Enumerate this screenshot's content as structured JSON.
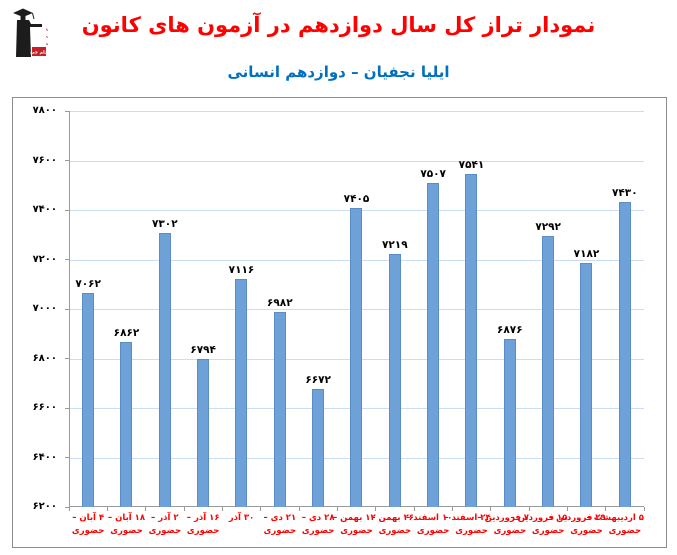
{
  "header": {
    "title": "نمودار تراز کل سال دوازدهم در آزمون های کانون",
    "subtitle": "ایلیا نجفیان – دوازدهم انسانی",
    "title_color": "#FF0000",
    "subtitle_color": "#0070C0",
    "logo_alt": "kanoon-farhangi-amoozesh-logo"
  },
  "chart_data": {
    "type": "bar",
    "title": "نمودار تراز کل سال دوازدهم در آزمون های کانون",
    "subtitle": "ایلیا نجفیان – دوازدهم انسانی",
    "categories": [
      "۴ آبان – حضوری",
      "۱۸ آبان – حضوری",
      "۲ آذر – حضوری",
      "۱۶ آذر – حضوری",
      "۳۰ آذر",
      "۲۱ دی – حضوری",
      "۲۸ دی – حضوری",
      "۱۲ بهمن – حضوری",
      "۲۶ بهمن – حضوری",
      "۱۰ اسفند – حضوری",
      "۲۴ اسفند – حضوری",
      "۷ فروردین – حضوری",
      "۱۵ فروردین – حضوری",
      "۲۹ فروردین – حضوری",
      "۵ اردیبهشت – حضوری"
    ],
    "values": [
      7062,
      6862,
      7302,
      6794,
      7116,
      6982,
      6672,
      7405,
      7219,
      7507,
      7541,
      6876,
      7292,
      7182,
      7430
    ],
    "value_labels": [
      "۷۰۶۲",
      "۶۸۶۲",
      "۷۳۰۲",
      "۶۷۹۴",
      "۷۱۱۶",
      "۶۹۸۲",
      "۶۶۷۲",
      "۷۴۰۵",
      "۷۲۱۹",
      "۷۵۰۷",
      "۷۵۴۱",
      "۶۸۷۶",
      "۷۲۹۲",
      "۷۱۸۲",
      "۷۴۳۰"
    ],
    "xlabel": "",
    "ylabel": "",
    "ylim": [
      6200,
      7800
    ],
    "yticks": [
      6200,
      6400,
      6600,
      6800,
      7000,
      7200,
      7400,
      7600,
      7800
    ],
    "ytick_labels": [
      "۶۲۰۰",
      "۶۴۰۰",
      "۶۶۰۰",
      "۶۸۰۰",
      "۷۰۰۰",
      "۷۲۰۰",
      "۷۴۰۰",
      "۷۶۰۰",
      "۷۸۰۰"
    ],
    "grid": true,
    "legend": false,
    "bar_color": "#6FA1D9",
    "bar_border_color": "#5A8CC7",
    "gridline_color": "#CADDF3",
    "axis_color": "#9B9B9B",
    "value_label_color": "#000000",
    "xtick_label_color": "#FF0000",
    "ytick_label_color": "#000000"
  }
}
